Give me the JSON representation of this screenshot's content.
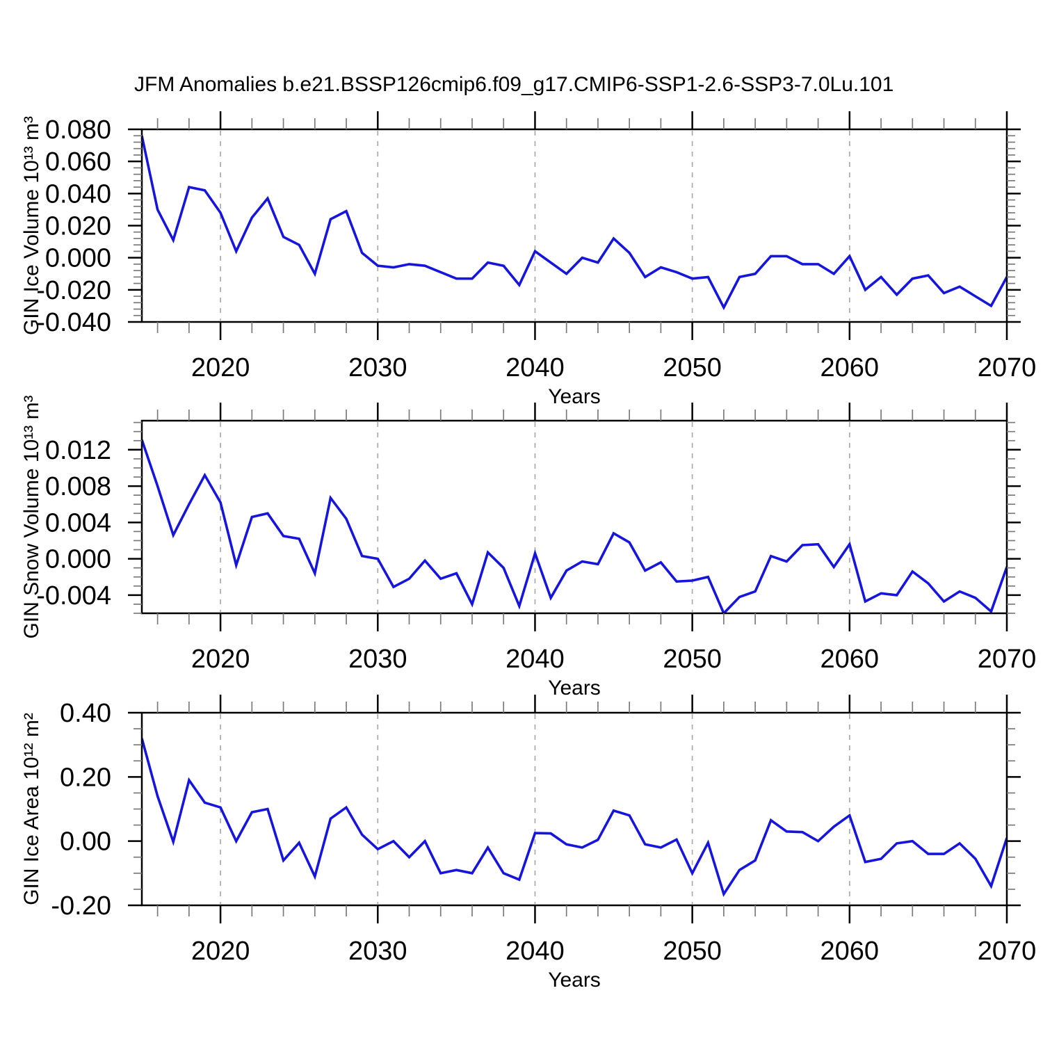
{
  "title": "JFM Anomalies b.e21.BSSP126cmip6.f09_g17.CMIP6-SSP1-2.6-SSP3-7.0Lu.101",
  "colors": {
    "line": "#1515dd",
    "axis": "#000000",
    "minor_tick": "#7a7a7a",
    "grid_dash": "#aaaaaa",
    "background": "#ffffff",
    "text": "#000000"
  },
  "x_axis": {
    "label": "Years",
    "start_year": 2015,
    "end_year": 2070,
    "major_ticks": [
      2020,
      2030,
      2040,
      2050,
      2060,
      2070
    ],
    "major_tick_labels": [
      "2020",
      "2030",
      "2040",
      "2050",
      "2060",
      "2070"
    ],
    "minor_step_years": 2,
    "dashed_grid_years": [
      2020,
      2030,
      2040,
      2050,
      2060
    ]
  },
  "chart_data": [
    {
      "type": "line",
      "name": "gin-ice-volume",
      "ylabel": "GIN Ice Volume 10¹³ m³",
      "xlabel": "Years",
      "ylim": [
        -0.04,
        0.08
      ],
      "yticks": [
        0.08,
        0.06,
        0.04,
        0.02,
        0.0,
        -0.02,
        -0.04
      ],
      "ytick_labels": [
        "0.080",
        "0.060",
        "0.040",
        "0.020",
        "0.000",
        "-0.020",
        "-0.040"
      ],
      "y_major_step": 0.02,
      "y_minor_step": 0.004,
      "grid": "vertical-dashed-decades",
      "legend": "none",
      "x_start_year": 2015,
      "values": [
        0.076,
        0.03,
        0.011,
        0.044,
        0.042,
        0.028,
        0.004,
        0.025,
        0.037,
        0.013,
        0.008,
        -0.01,
        0.024,
        0.029,
        0.003,
        -0.005,
        -0.006,
        -0.004,
        -0.005,
        -0.009,
        -0.013,
        -0.013,
        -0.003,
        -0.005,
        -0.017,
        0.004,
        -0.003,
        -0.01,
        0.0,
        -0.003,
        0.012,
        0.003,
        -0.012,
        -0.006,
        -0.009,
        -0.013,
        -0.012,
        -0.031,
        -0.012,
        -0.01,
        0.001,
        0.001,
        -0.004,
        -0.004,
        -0.01,
        0.001,
        -0.02,
        -0.012,
        -0.023,
        -0.013,
        -0.011,
        -0.022,
        -0.018,
        -0.024,
        -0.03,
        -0.012
      ]
    },
    {
      "type": "line",
      "name": "gin-snow-volume",
      "ylabel": "GIN Snow Volume 10¹³ m³",
      "xlabel": "Years",
      "ylim": [
        -0.006,
        0.0152
      ],
      "yticks": [
        0.012,
        0.008,
        0.004,
        0.0,
        -0.004
      ],
      "ytick_labels": [
        "0.012",
        "0.008",
        "0.004",
        "0.000",
        "-0.004"
      ],
      "y_major_step": 0.004,
      "y_minor_step": 0.001,
      "grid": "vertical-dashed-decades",
      "legend": "none",
      "x_start_year": 2015,
      "values": [
        0.0131,
        0.008,
        0.0026,
        0.006,
        0.0092,
        0.0062,
        -0.0007,
        0.0046,
        0.005,
        0.0025,
        0.0022,
        -0.0016,
        0.0067,
        0.0044,
        0.0003,
        0.0,
        -0.0031,
        -0.0022,
        -0.0002,
        -0.0022,
        -0.0016,
        -0.005,
        0.0007,
        -0.001,
        -0.0052,
        0.0006,
        -0.0043,
        -0.0013,
        -0.0003,
        -0.0006,
        0.0028,
        0.0018,
        -0.0013,
        -0.0004,
        -0.0025,
        -0.0024,
        -0.002,
        -0.006,
        -0.0042,
        -0.0036,
        0.0003,
        -0.0003,
        0.0015,
        0.0016,
        -0.0009,
        0.0016,
        -0.0047,
        -0.0038,
        -0.004,
        -0.0014,
        -0.0027,
        -0.0047,
        -0.0036,
        -0.0043,
        -0.0058,
        -0.0009
      ]
    },
    {
      "type": "line",
      "name": "gin-ice-area",
      "ylabel": "GIN Ice Area 10¹² m²",
      "xlabel": "Years",
      "ylim": [
        -0.2,
        0.4
      ],
      "yticks": [
        0.4,
        0.2,
        0.0,
        -0.2
      ],
      "ytick_labels": [
        "0.40",
        "0.20",
        "0.00",
        "-0.20"
      ],
      "y_major_step": 0.2,
      "y_minor_step": 0.05,
      "grid": "vertical-dashed-decades",
      "legend": "none",
      "x_start_year": 2015,
      "values": [
        0.32,
        0.14,
        -0.002,
        0.19,
        0.12,
        0.105,
        0.0,
        0.09,
        0.1,
        -0.06,
        -0.005,
        -0.11,
        0.07,
        0.105,
        0.02,
        -0.025,
        0.0,
        -0.05,
        0.0,
        -0.1,
        -0.09,
        -0.1,
        -0.02,
        -0.1,
        -0.12,
        0.025,
        0.024,
        -0.01,
        -0.02,
        0.004,
        0.095,
        0.08,
        -0.01,
        -0.02,
        0.005,
        -0.1,
        -0.005,
        -0.165,
        -0.09,
        -0.06,
        0.065,
        0.03,
        0.028,
        0.0,
        0.045,
        0.08,
        -0.065,
        -0.055,
        -0.007,
        0.0,
        -0.04,
        -0.04,
        -0.007,
        -0.055,
        -0.14,
        0.01
      ]
    }
  ]
}
